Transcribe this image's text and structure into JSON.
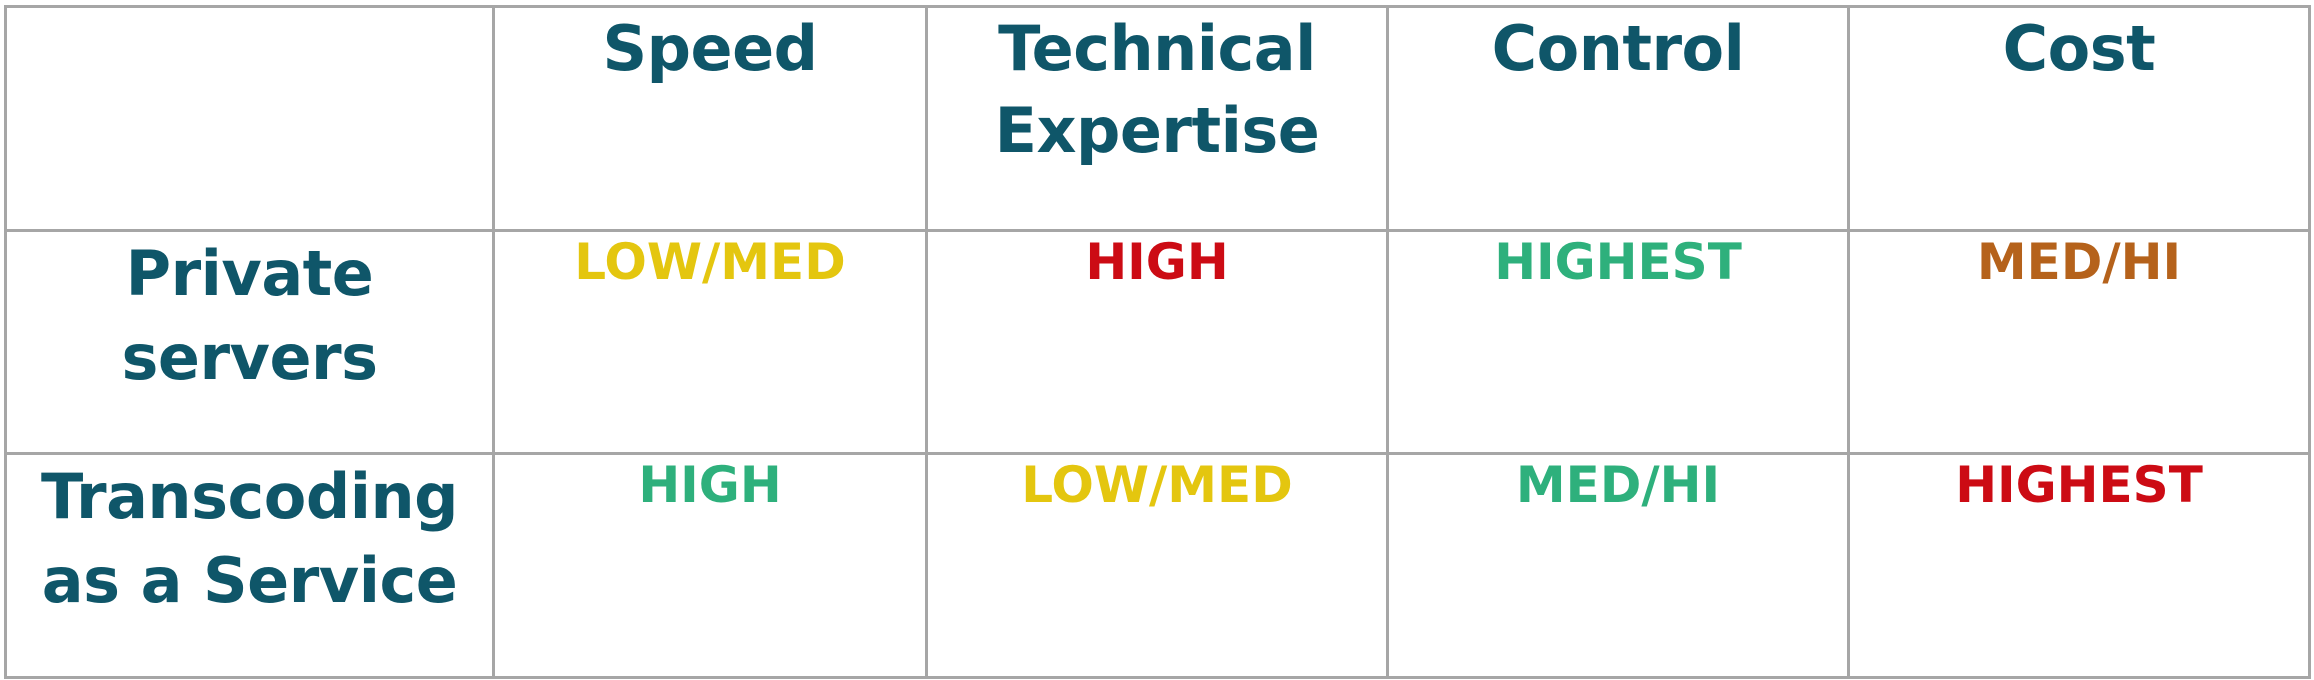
{
  "colors": {
    "heading": "#0f5669",
    "low_med": "#e4c60f",
    "high_red": "#cc0b14",
    "green": "#2eb07c",
    "orange": "#b5621b",
    "grid": "#a6a6a6"
  },
  "table": {
    "corner": "",
    "columns": [
      "Speed",
      "Technical Expertise",
      "Control",
      "Cost"
    ],
    "rows": [
      {
        "label": "Private servers",
        "cells": [
          {
            "text": "LOW/MED",
            "color": "#e4c60f"
          },
          {
            "text": "HIGH",
            "color": "#cc0b14"
          },
          {
            "text": "HIGHEST",
            "color": "#2eb07c"
          },
          {
            "text": "MED/HI",
            "color": "#b5621b"
          }
        ]
      },
      {
        "label": "Transcoding as a Service",
        "cells": [
          {
            "text": "HIGH",
            "color": "#2eb07c"
          },
          {
            "text": "LOW/MED",
            "color": "#e4c60f"
          },
          {
            "text": "MED/HI",
            "color": "#2eb07c"
          },
          {
            "text": "HIGHEST",
            "color": "#cc0b14"
          }
        ]
      }
    ]
  }
}
